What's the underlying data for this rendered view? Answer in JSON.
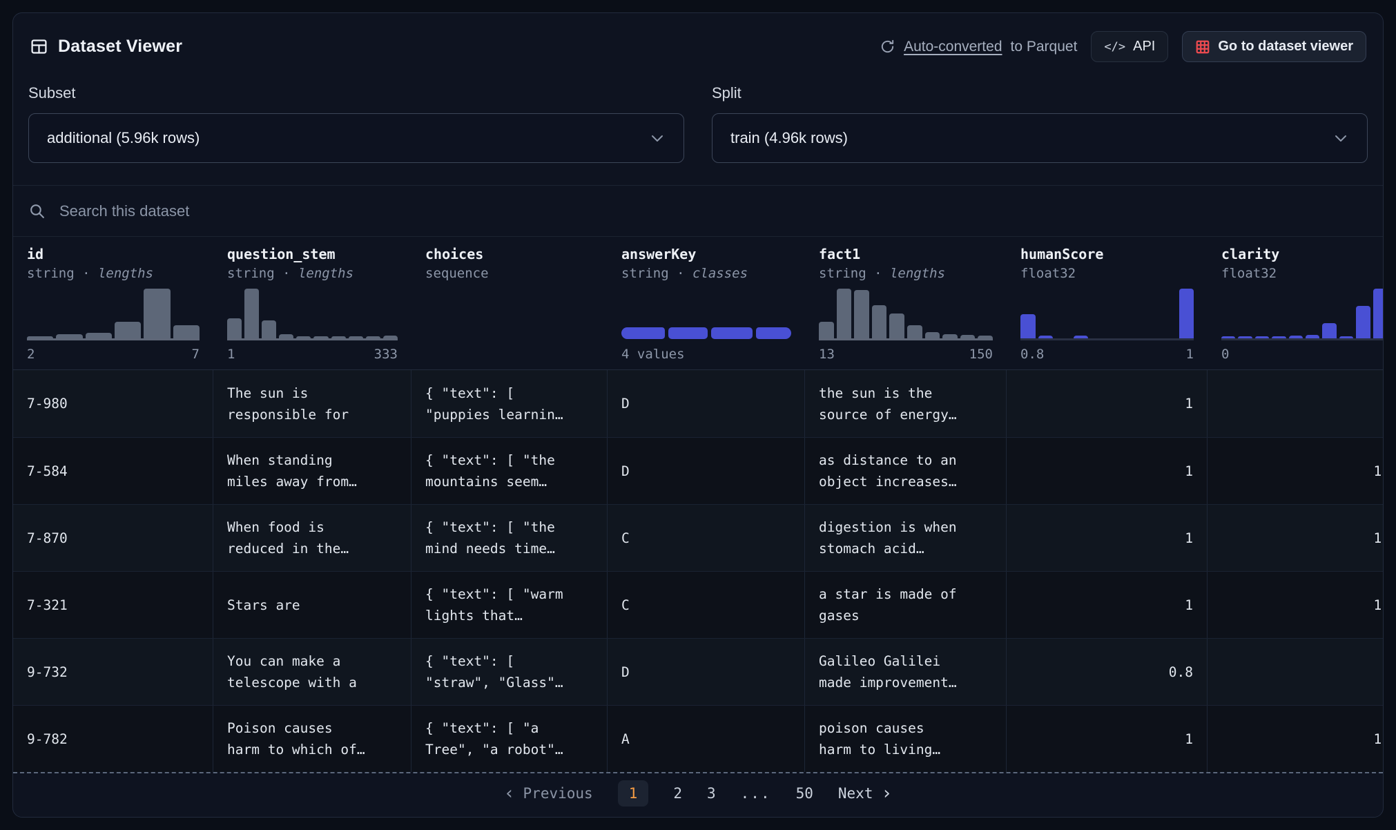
{
  "header": {
    "title": "Dataset Viewer",
    "auto_converted_link": "Auto-converted",
    "auto_converted_suffix": "to Parquet",
    "api_icon": "</>",
    "api_label": "API",
    "goto_label": "Go to dataset viewer"
  },
  "controls": {
    "subset_label": "Subset",
    "subset_value": "additional (5.96k rows)",
    "split_label": "Split",
    "split_value": "train (4.96k rows)"
  },
  "search": {
    "placeholder": "Search this dataset"
  },
  "colors": {
    "accent_blue": "#4950d4",
    "hist_gray": "#5d6778",
    "active_page_orange": "#f59c44",
    "brand_red": "#ef4b50",
    "card_bg": "#0e1320",
    "page_bg": "#0a0e17"
  },
  "chart_data": [
    {
      "type": "bar",
      "column": "id",
      "title": "id lengths histogram",
      "values": [
        4,
        8,
        11,
        33,
        100,
        26
      ],
      "xmin": "2",
      "xmax": "7",
      "color": "gray"
    },
    {
      "type": "bar",
      "column": "question_stem",
      "title": "question_stem lengths histogram",
      "values": [
        40,
        100,
        36,
        9,
        4,
        4,
        4,
        4,
        4,
        5
      ],
      "xmin": "1",
      "xmax": "333",
      "color": "gray"
    },
    {
      "type": "bar",
      "column": "answerKey",
      "title": "class distribution",
      "segments": [
        26,
        24,
        25,
        21
      ],
      "label": "4 values",
      "color": "blue"
    },
    {
      "type": "bar",
      "column": "fact1",
      "title": "fact1 lengths histogram",
      "values": [
        33,
        100,
        97,
        67,
        50,
        26,
        12,
        9,
        7,
        6
      ],
      "xmin": "13",
      "xmax": "150",
      "color": "gray"
    },
    {
      "type": "bar",
      "column": "humanScore",
      "title": "humanScore histogram",
      "values": [
        48,
        5,
        0,
        6,
        0,
        0,
        0,
        0,
        0,
        100
      ],
      "xmin": "0.8",
      "xmax": "1",
      "color": "blue"
    },
    {
      "type": "bar",
      "column": "clarity",
      "title": "clarity histogram",
      "values": [
        4,
        4,
        4,
        4,
        5,
        7,
        30,
        4,
        65,
        100
      ],
      "xmin": "0",
      "xmax": "",
      "color": "blue"
    }
  ],
  "table": {
    "columns": [
      {
        "name": "id",
        "type": "string",
        "sep": " · ",
        "suffix": "lengths",
        "hist": {
          "kind": "bars",
          "color": "gray",
          "values": [
            4,
            8,
            11,
            33,
            100,
            26
          ],
          "min": "2",
          "max": "7"
        }
      },
      {
        "name": "question_stem",
        "type": "string",
        "sep": " · ",
        "suffix": "lengths",
        "hist": {
          "kind": "bars",
          "color": "gray",
          "values": [
            40,
            100,
            36,
            9,
            4,
            4,
            4,
            4,
            4,
            5
          ],
          "min": "1",
          "max": "333"
        }
      },
      {
        "name": "choices",
        "type": "sequence",
        "sep": "",
        "suffix": "",
        "hist": {
          "kind": "none",
          "min": "",
          "max": ""
        }
      },
      {
        "name": "answerKey",
        "type": "string",
        "sep": " · ",
        "suffix": "classes",
        "hist": {
          "kind": "segments",
          "segments": [
            26,
            24,
            25,
            21
          ],
          "min": "4 values",
          "max": ""
        }
      },
      {
        "name": "fact1",
        "type": "string",
        "sep": " · ",
        "suffix": "lengths",
        "hist": {
          "kind": "bars",
          "color": "gray",
          "values": [
            33,
            100,
            97,
            67,
            50,
            26,
            12,
            9,
            7,
            6
          ],
          "min": "13",
          "max": "150"
        }
      },
      {
        "name": "humanScore",
        "type": "float32",
        "sep": "",
        "suffix": "",
        "hist": {
          "kind": "bars",
          "color": "blue",
          "values": [
            48,
            5,
            0,
            6,
            0,
            0,
            0,
            0,
            0,
            100
          ],
          "min": "0.8",
          "max": "1"
        }
      },
      {
        "name": "clarity",
        "type": "float32",
        "sep": "",
        "suffix": "",
        "hist": {
          "kind": "bars",
          "color": "blue",
          "values": [
            4,
            4,
            4,
            4,
            5,
            7,
            30,
            4,
            65,
            100
          ],
          "min": "0",
          "max": ""
        }
      }
    ],
    "rows": [
      {
        "id": "7-980",
        "question_stem": "The sun is responsible for",
        "choices": "{ \"text\": [ \"puppies learnin…",
        "answerKey": "D",
        "fact1": "the sun is the source of energy…",
        "humanScore": "1",
        "clarity": ""
      },
      {
        "id": "7-584",
        "question_stem": "When standing miles away from…",
        "choices": "{ \"text\": [ \"the mountains seem…",
        "answerKey": "D",
        "fact1": "as distance to an object increases…",
        "humanScore": "1",
        "clarity": "1."
      },
      {
        "id": "7-870",
        "question_stem": "When food is reduced in the…",
        "choices": "{ \"text\": [ \"the mind needs time…",
        "answerKey": "C",
        "fact1": "digestion is when stomach acid…",
        "humanScore": "1",
        "clarity": "1."
      },
      {
        "id": "7-321",
        "question_stem": "Stars are",
        "choices": "{ \"text\": [ \"warm lights that…",
        "answerKey": "C",
        "fact1": "a star is made of gases",
        "humanScore": "1",
        "clarity": "1."
      },
      {
        "id": "9-732",
        "question_stem": "You can make a telescope with a",
        "choices": "{ \"text\": [ \"straw\", \"Glass\"…",
        "answerKey": "D",
        "fact1": "Galileo Galilei made improvement…",
        "humanScore": "0.8",
        "clarity": ""
      },
      {
        "id": "9-782",
        "question_stem": "Poison causes harm to which of…",
        "choices": "{ \"text\": [ \"a Tree\", \"a robot\"…",
        "answerKey": "A",
        "fact1": "poison causes harm to living…",
        "humanScore": "1",
        "clarity": "1."
      }
    ]
  },
  "pagination": {
    "prev_chevron": "‹",
    "previous": "Previous",
    "pages": [
      "1",
      "2",
      "3",
      "...",
      "50"
    ],
    "active_page": "1",
    "next": "Next",
    "next_chevron": "›"
  }
}
